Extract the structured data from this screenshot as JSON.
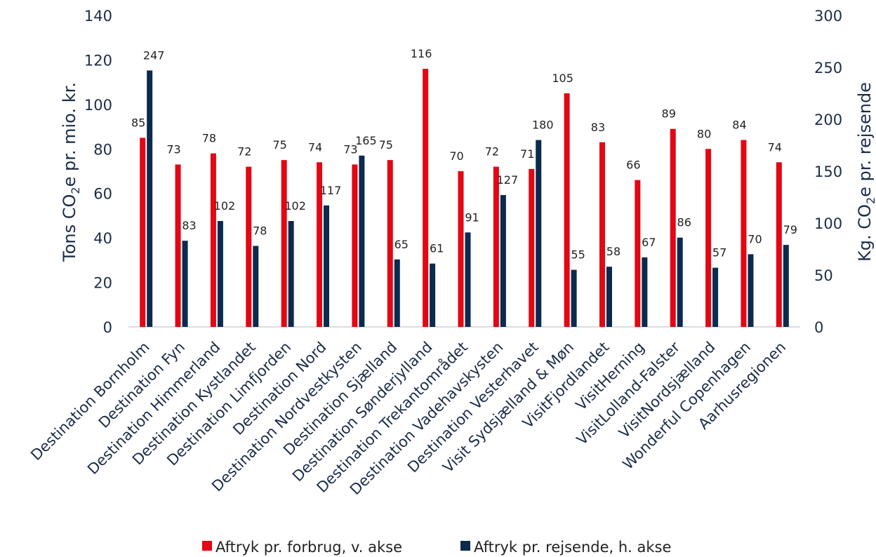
{
  "chart_data": {
    "type": "bar",
    "categories": [
      "Destination Bornholm",
      "Destination Fyn",
      "Destination Himmerland",
      "Destination Kystlandet",
      "Destination Limfjorden",
      "Destination Nord",
      "Destination Nordvestkysten",
      "Destination Sjælland",
      "Destination Sønderjylland",
      "Destination Trekantområdet",
      "Destination Vadehavskysten",
      "Destination Vesterhavet",
      "Visit Sydsjælland & Møn",
      "VisitFjordlandet",
      "VisitHerning",
      "VisitLolland-Falster",
      "VisitNordsjælland",
      "Wonderful Copenhagen",
      "Aarhusregionen"
    ],
    "series": [
      {
        "name": "Aftryk pr. forbrug, v. akse",
        "axis": "left",
        "color": "#e30613",
        "values": [
          85,
          73,
          78,
          72,
          75,
          74,
          73,
          75,
          116,
          70,
          72,
          71,
          105,
          83,
          66,
          89,
          80,
          84,
          74
        ]
      },
      {
        "name": "Aftryk pr. rejsende, h. akse",
        "axis": "right",
        "color": "#0b2a4e",
        "values": [
          247,
          83,
          102,
          78,
          102,
          117,
          165,
          65,
          61,
          91,
          127,
          180,
          55,
          58,
          67,
          86,
          57,
          70,
          79
        ]
      }
    ],
    "ylabel_left": "Tons CO2e pr. mio. kr.",
    "ylabel_right": "Kg. CO2e pr. rejsende",
    "ylim_left": [
      0,
      140
    ],
    "ylim_right": [
      0,
      300
    ],
    "yticks_left": [
      "0",
      "20",
      "40",
      "60",
      "80",
      "100",
      "120",
      "140"
    ],
    "yticks_right": [
      "0",
      "50",
      "100",
      "150",
      "200",
      "250",
      "300"
    ],
    "grid": false,
    "legend_position": "bottom"
  }
}
